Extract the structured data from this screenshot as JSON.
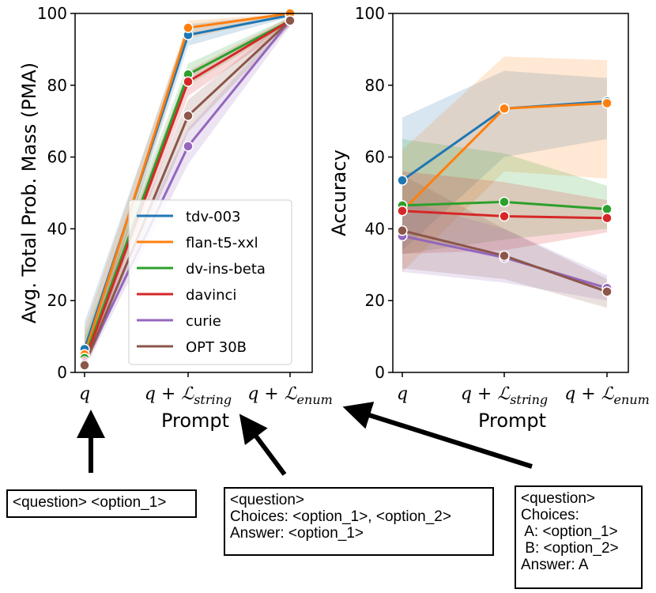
{
  "chart_data": [
    {
      "type": "line",
      "panel": "left",
      "title": "",
      "xlabel": "Prompt",
      "ylabel": "Avg. Total Prob. Mass (PMA)",
      "categories": [
        "q",
        "q + L_string",
        "q + L_enum"
      ],
      "category_display": [
        {
          "base": "q",
          "sub": ""
        },
        {
          "base": "q + ℒ",
          "sub": "string"
        },
        {
          "base": "q + ℒ",
          "sub": "enum"
        }
      ],
      "ylim": [
        0,
        100
      ],
      "yticks": [
        "0",
        "20",
        "40",
        "60",
        "80",
        "100"
      ],
      "series": [
        {
          "name": "tdv-003",
          "color": "#1f77b4",
          "values": [
            6.5,
            94,
            99.5
          ],
          "ci_low": [
            2,
            91,
            99
          ],
          "ci_high": [
            14,
            97,
            100
          ]
        },
        {
          "name": "flan-t5-xxl",
          "color": "#ff7f0e",
          "values": [
            5,
            96,
            100
          ],
          "ci_low": [
            1,
            93,
            99.5
          ],
          "ci_high": [
            12,
            98,
            100
          ]
        },
        {
          "name": "dv-ins-beta",
          "color": "#2ca02c",
          "values": [
            4,
            83,
            98
          ],
          "ci_low": [
            1,
            80,
            97
          ],
          "ci_high": [
            10,
            86,
            99
          ]
        },
        {
          "name": "davinci",
          "color": "#d62728",
          "values": [
            3,
            81,
            98
          ],
          "ci_low": [
            1,
            77,
            96.5
          ],
          "ci_high": [
            8,
            84,
            99
          ]
        },
        {
          "name": "curie",
          "color": "#9467bd",
          "values": [
            2.5,
            63,
            98
          ],
          "ci_low": [
            1,
            58,
            96.5
          ],
          "ci_high": [
            6,
            68,
            99
          ]
        },
        {
          "name": "OPT 30B",
          "color": "#8c564b",
          "values": [
            2,
            71.5,
            98
          ],
          "ci_low": [
            0.5,
            67,
            96.5
          ],
          "ci_high": [
            5,
            76,
            99
          ]
        }
      ],
      "legend_position": "lower-right"
    },
    {
      "type": "line",
      "panel": "right",
      "title": "",
      "xlabel": "Prompt",
      "ylabel": "Accuracy",
      "categories": [
        "q",
        "q + L_string",
        "q + L_enum"
      ],
      "category_display": [
        {
          "base": "q",
          "sub": ""
        },
        {
          "base": "q + ℒ",
          "sub": "string"
        },
        {
          "base": "q + ℒ",
          "sub": "enum"
        }
      ],
      "ylim": [
        0,
        100
      ],
      "yticks": [
        "0",
        "20",
        "40",
        "60",
        "80",
        "100"
      ],
      "series": [
        {
          "name": "tdv-003",
          "color": "#1f77b4",
          "values": [
            53.5,
            73.5,
            75.5
          ],
          "ci_low": [
            34,
            60,
            65
          ],
          "ci_high": [
            71,
            84,
            82
          ]
        },
        {
          "name": "flan-t5-xxl",
          "color": "#ff7f0e",
          "values": [
            45,
            73.5,
            75
          ],
          "ci_low": [
            28,
            56,
            54
          ],
          "ci_high": [
            62,
            88,
            87
          ]
        },
        {
          "name": "dv-ins-beta",
          "color": "#2ca02c",
          "values": [
            46.5,
            47.5,
            45.5
          ],
          "ci_low": [
            33,
            37,
            40
          ],
          "ci_high": [
            65,
            61,
            52
          ]
        },
        {
          "name": "davinci",
          "color": "#d62728",
          "values": [
            45,
            43.5,
            43
          ],
          "ci_low": [
            33,
            34,
            39
          ],
          "ci_high": [
            56,
            53,
            48
          ]
        },
        {
          "name": "curie",
          "color": "#9467bd",
          "values": [
            38,
            32,
            23.5
          ],
          "ci_low": [
            28,
            25,
            20
          ],
          "ci_high": [
            48,
            40,
            27
          ]
        },
        {
          "name": "OPT 30B",
          "color": "#8c564b",
          "values": [
            39.5,
            32.5,
            22.5
          ],
          "ci_low": [
            29,
            26,
            18
          ],
          "ci_high": [
            55,
            40,
            26
          ]
        }
      ]
    }
  ],
  "prompt_boxes": [
    {
      "text": "<question> <option_1>"
    },
    {
      "text": "<question>\nChoices: <option_1>, <option_2>\nAnswer: <option_1>"
    },
    {
      "text": "<question>\nChoices:\n A: <option_1>\n B: <option_2>\nAnswer: A"
    }
  ]
}
